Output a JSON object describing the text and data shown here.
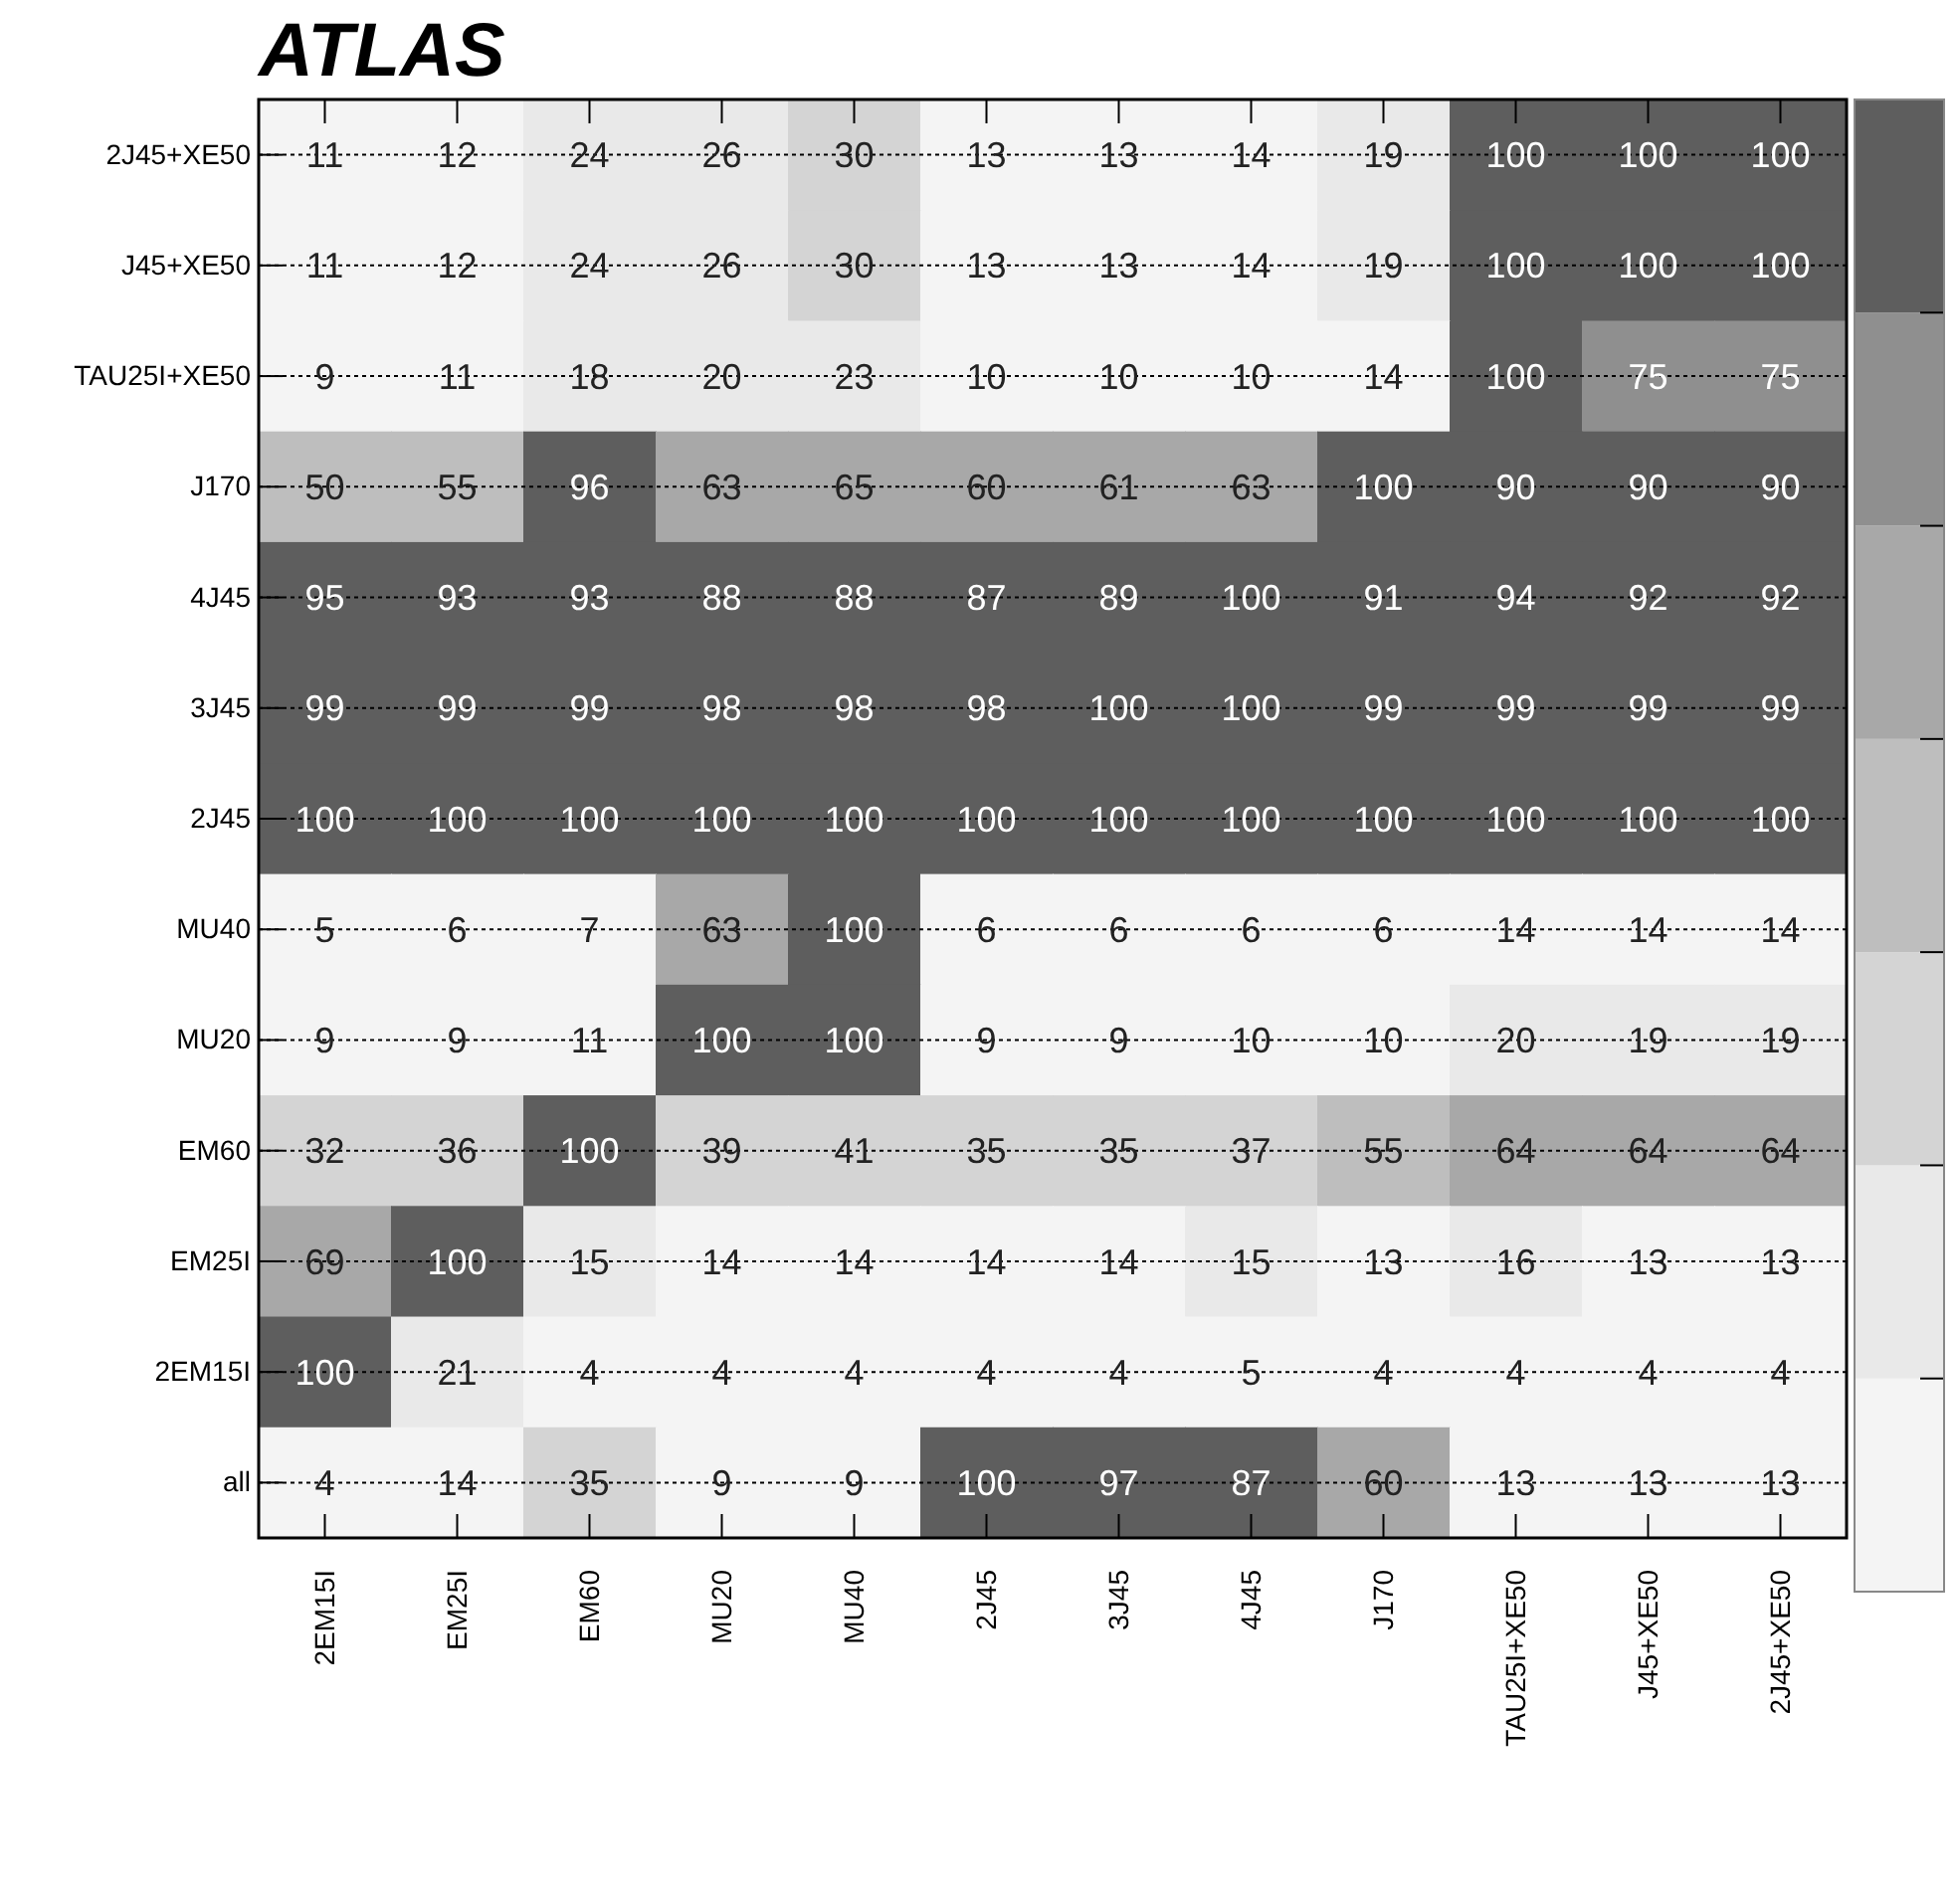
{
  "chart_data": {
    "type": "heatmap",
    "annotations": [
      "ATLAS"
    ],
    "categories": [
      "2EM15I",
      "EM25I",
      "EM60",
      "MU20",
      "MU40",
      "2J45",
      "3J45",
      "4J45",
      "J170",
      "TAU25I+XE50",
      "J45+XE50",
      "2J45+XE50"
    ],
    "y_categories": [
      "2J45+XE50",
      "J45+XE50",
      "TAU25I+XE50",
      "J170",
      "4J45",
      "3J45",
      "2J45",
      "MU40",
      "MU20",
      "EM60",
      "EM25I",
      "2EM15I",
      "all"
    ],
    "cells": [
      [
        11,
        12,
        24,
        26,
        30,
        13,
        13,
        14,
        19,
        100,
        100,
        100
      ],
      [
        11,
        12,
        24,
        26,
        30,
        13,
        13,
        14,
        19,
        100,
        100,
        100
      ],
      [
        9,
        11,
        18,
        20,
        23,
        10,
        10,
        10,
        14,
        100,
        75,
        75
      ],
      [
        50,
        55,
        96,
        63,
        65,
        60,
        61,
        63,
        100,
        90,
        90,
        90
      ],
      [
        95,
        93,
        93,
        88,
        88,
        87,
        89,
        100,
        91,
        94,
        92,
        92
      ],
      [
        99,
        99,
        99,
        98,
        98,
        98,
        100,
        100,
        99,
        99,
        99,
        99
      ],
      [
        100,
        100,
        100,
        100,
        100,
        100,
        100,
        100,
        100,
        100,
        100,
        100
      ],
      [
        5,
        6,
        7,
        63,
        100,
        6,
        6,
        6,
        6,
        14,
        14,
        14
      ],
      [
        9,
        9,
        11,
        100,
        100,
        9,
        9,
        10,
        10,
        20,
        19,
        19
      ],
      [
        32,
        36,
        100,
        39,
        41,
        35,
        35,
        37,
        55,
        64,
        64,
        64
      ],
      [
        69,
        100,
        15,
        14,
        14,
        14,
        14,
        15,
        13,
        16,
        13,
        13
      ],
      [
        100,
        21,
        4,
        4,
        4,
        4,
        4,
        5,
        4,
        4,
        4,
        4
      ],
      [
        4,
        14,
        35,
        9,
        9,
        100,
        97,
        87,
        60,
        13,
        13,
        13
      ]
    ],
    "grid": "y",
    "data_labels": true
  }
}
